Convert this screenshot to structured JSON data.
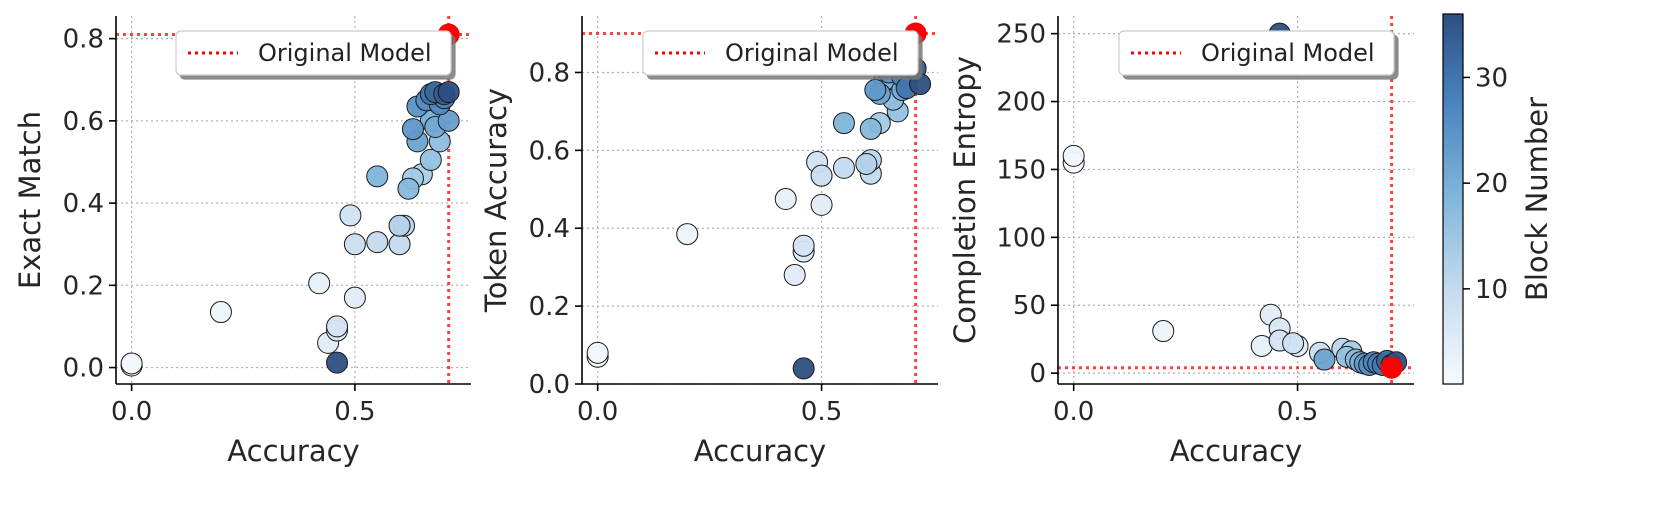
{
  "chart_data": [
    {
      "type": "scatter",
      "xlabel": "Accuracy",
      "ylabel": "Exact Match",
      "xlim": [
        -0.035,
        0.76
      ],
      "ylim": [
        -0.04,
        0.855
      ],
      "xticks": [
        0.0,
        0.5
      ],
      "xtick_labels": [
        "0.0",
        "0.5"
      ],
      "yticks": [
        0.0,
        0.2,
        0.4,
        0.6,
        0.8
      ],
      "ytick_labels": [
        "0.0",
        "0.2",
        "0.4",
        "0.6",
        "0.8"
      ],
      "grid": true,
      "legend": {
        "label": "Original Model",
        "position": "top-right"
      },
      "reference": {
        "x": 0.71,
        "y": 0.81,
        "color": "#ff0000"
      },
      "points": [
        {
          "x": 0.0,
          "y": 0.005,
          "block": 1
        },
        {
          "x": 0.0,
          "y": 0.01,
          "block": 2
        },
        {
          "x": 0.2,
          "y": 0.135,
          "block": 3
        },
        {
          "x": 0.42,
          "y": 0.205,
          "block": 4
        },
        {
          "x": 0.44,
          "y": 0.06,
          "block": 5
        },
        {
          "x": 0.46,
          "y": 0.09,
          "block": 6
        },
        {
          "x": 0.46,
          "y": 0.1,
          "block": 7
        },
        {
          "x": 0.5,
          "y": 0.17,
          "block": 5
        },
        {
          "x": 0.49,
          "y": 0.37,
          "block": 8
        },
        {
          "x": 0.5,
          "y": 0.3,
          "block": 9
        },
        {
          "x": 0.55,
          "y": 0.305,
          "block": 10
        },
        {
          "x": 0.6,
          "y": 0.3,
          "block": 10
        },
        {
          "x": 0.6,
          "y": 0.345,
          "block": 12
        },
        {
          "x": 0.61,
          "y": 0.345,
          "block": 11
        },
        {
          "x": 0.55,
          "y": 0.465,
          "block": 19
        },
        {
          "x": 0.62,
          "y": 0.435,
          "block": 18
        },
        {
          "x": 0.63,
          "y": 0.46,
          "block": 14
        },
        {
          "x": 0.65,
          "y": 0.47,
          "block": 13
        },
        {
          "x": 0.67,
          "y": 0.505,
          "block": 16
        },
        {
          "x": 0.69,
          "y": 0.55,
          "block": 17
        },
        {
          "x": 0.64,
          "y": 0.55,
          "block": 22
        },
        {
          "x": 0.63,
          "y": 0.58,
          "block": 24
        },
        {
          "x": 0.68,
          "y": 0.585,
          "block": 21
        },
        {
          "x": 0.67,
          "y": 0.6,
          "block": 20
        },
        {
          "x": 0.71,
          "y": 0.6,
          "block": 23
        },
        {
          "x": 0.64,
          "y": 0.635,
          "block": 25
        },
        {
          "x": 0.66,
          "y": 0.65,
          "block": 26
        },
        {
          "x": 0.69,
          "y": 0.64,
          "block": 27
        },
        {
          "x": 0.7,
          "y": 0.655,
          "block": 28
        },
        {
          "x": 0.67,
          "y": 0.665,
          "block": 30
        },
        {
          "x": 0.68,
          "y": 0.67,
          "block": 32
        },
        {
          "x": 0.7,
          "y": 0.665,
          "block": 34
        },
        {
          "x": 0.71,
          "y": 0.67,
          "block": 36
        },
        {
          "x": 0.46,
          "y": 0.012,
          "block": 36
        }
      ]
    },
    {
      "type": "scatter",
      "xlabel": "Accuracy",
      "ylabel": "Token Accuracy",
      "xlim": [
        -0.035,
        0.76
      ],
      "ylim": [
        0.0,
        0.945
      ],
      "xticks": [
        0.0,
        0.5
      ],
      "xtick_labels": [
        "0.0",
        "0.5"
      ],
      "yticks": [
        0.0,
        0.2,
        0.4,
        0.6,
        0.8
      ],
      "ytick_labels": [
        "0.0",
        "0.2",
        "0.4",
        "0.6",
        "0.8"
      ],
      "grid": true,
      "legend": {
        "label": "Original Model",
        "position": "top-right"
      },
      "reference": {
        "x": 0.71,
        "y": 0.9,
        "color": "#ff0000"
      },
      "points": [
        {
          "x": 0.0,
          "y": 0.07,
          "block": 1
        },
        {
          "x": 0.0,
          "y": 0.08,
          "block": 2
        },
        {
          "x": 0.2,
          "y": 0.385,
          "block": 3
        },
        {
          "x": 0.42,
          "y": 0.475,
          "block": 4
        },
        {
          "x": 0.44,
          "y": 0.28,
          "block": 5
        },
        {
          "x": 0.46,
          "y": 0.34,
          "block": 6
        },
        {
          "x": 0.46,
          "y": 0.355,
          "block": 7
        },
        {
          "x": 0.5,
          "y": 0.46,
          "block": 5
        },
        {
          "x": 0.49,
          "y": 0.57,
          "block": 8
        },
        {
          "x": 0.5,
          "y": 0.535,
          "block": 9
        },
        {
          "x": 0.55,
          "y": 0.555,
          "block": 10
        },
        {
          "x": 0.61,
          "y": 0.54,
          "block": 10
        },
        {
          "x": 0.6,
          "y": 0.565,
          "block": 12
        },
        {
          "x": 0.61,
          "y": 0.575,
          "block": 11
        },
        {
          "x": 0.55,
          "y": 0.67,
          "block": 19
        },
        {
          "x": 0.61,
          "y": 0.655,
          "block": 18
        },
        {
          "x": 0.63,
          "y": 0.67,
          "block": 14
        },
        {
          "x": 0.67,
          "y": 0.7,
          "block": 16
        },
        {
          "x": 0.66,
          "y": 0.73,
          "block": 17
        },
        {
          "x": 0.62,
          "y": 0.755,
          "block": 24
        },
        {
          "x": 0.63,
          "y": 0.745,
          "block": 22
        },
        {
          "x": 0.68,
          "y": 0.755,
          "block": 21
        },
        {
          "x": 0.64,
          "y": 0.78,
          "block": 20
        },
        {
          "x": 0.65,
          "y": 0.8,
          "block": 25
        },
        {
          "x": 0.66,
          "y": 0.82,
          "block": 26
        },
        {
          "x": 0.68,
          "y": 0.79,
          "block": 27
        },
        {
          "x": 0.69,
          "y": 0.76,
          "block": 30
        },
        {
          "x": 0.7,
          "y": 0.8,
          "block": 28
        },
        {
          "x": 0.7,
          "y": 0.815,
          "block": 32
        },
        {
          "x": 0.71,
          "y": 0.81,
          "block": 34
        },
        {
          "x": 0.72,
          "y": 0.77,
          "block": 36
        },
        {
          "x": 0.46,
          "y": 0.04,
          "block": 36
        }
      ]
    },
    {
      "type": "scatter",
      "xlabel": "Accuracy",
      "ylabel": "Completion Entropy",
      "xlim": [
        -0.035,
        0.76
      ],
      "ylim": [
        -8,
        263
      ],
      "xticks": [
        0.0,
        0.5
      ],
      "xtick_labels": [
        "0.0",
        "0.5"
      ],
      "yticks": [
        0,
        50,
        100,
        150,
        200,
        250
      ],
      "ytick_labels": [
        "0",
        "50",
        "100",
        "150",
        "200",
        "250"
      ],
      "grid": true,
      "legend": {
        "label": "Original Model",
        "position": "top-right"
      },
      "reference": {
        "x": 0.71,
        "y": 4,
        "color": "#ff0000"
      },
      "colorbar": {
        "label": "Block Number",
        "min": 1,
        "max": 36,
        "ticks": [
          10,
          20,
          30
        ]
      },
      "points": [
        {
          "x": 0.0,
          "y": 155,
          "block": 1
        },
        {
          "x": 0.0,
          "y": 160,
          "block": 2
        },
        {
          "x": 0.2,
          "y": 31,
          "block": 3
        },
        {
          "x": 0.42,
          "y": 20,
          "block": 4
        },
        {
          "x": 0.44,
          "y": 43,
          "block": 5
        },
        {
          "x": 0.46,
          "y": 33,
          "block": 6
        },
        {
          "x": 0.46,
          "y": 24,
          "block": 7
        },
        {
          "x": 0.5,
          "y": 20,
          "block": 5
        },
        {
          "x": 0.49,
          "y": 22,
          "block": 8
        },
        {
          "x": 0.55,
          "y": 15,
          "block": 9
        },
        {
          "x": 0.56,
          "y": 10,
          "block": 22
        },
        {
          "x": 0.6,
          "y": 18,
          "block": 11
        },
        {
          "x": 0.62,
          "y": 16,
          "block": 13
        },
        {
          "x": 0.61,
          "y": 12,
          "block": 16
        },
        {
          "x": 0.63,
          "y": 10,
          "block": 18
        },
        {
          "x": 0.64,
          "y": 8,
          "block": 20
        },
        {
          "x": 0.65,
          "y": 7,
          "block": 24
        },
        {
          "x": 0.66,
          "y": 6,
          "block": 26
        },
        {
          "x": 0.67,
          "y": 8,
          "block": 27
        },
        {
          "x": 0.68,
          "y": 7,
          "block": 28
        },
        {
          "x": 0.69,
          "y": 6,
          "block": 30
        },
        {
          "x": 0.7,
          "y": 9,
          "block": 32
        },
        {
          "x": 0.71,
          "y": 6,
          "block": 34
        },
        {
          "x": 0.72,
          "y": 8,
          "block": 36
        },
        {
          "x": 0.46,
          "y": 250,
          "block": 36
        }
      ]
    }
  ]
}
